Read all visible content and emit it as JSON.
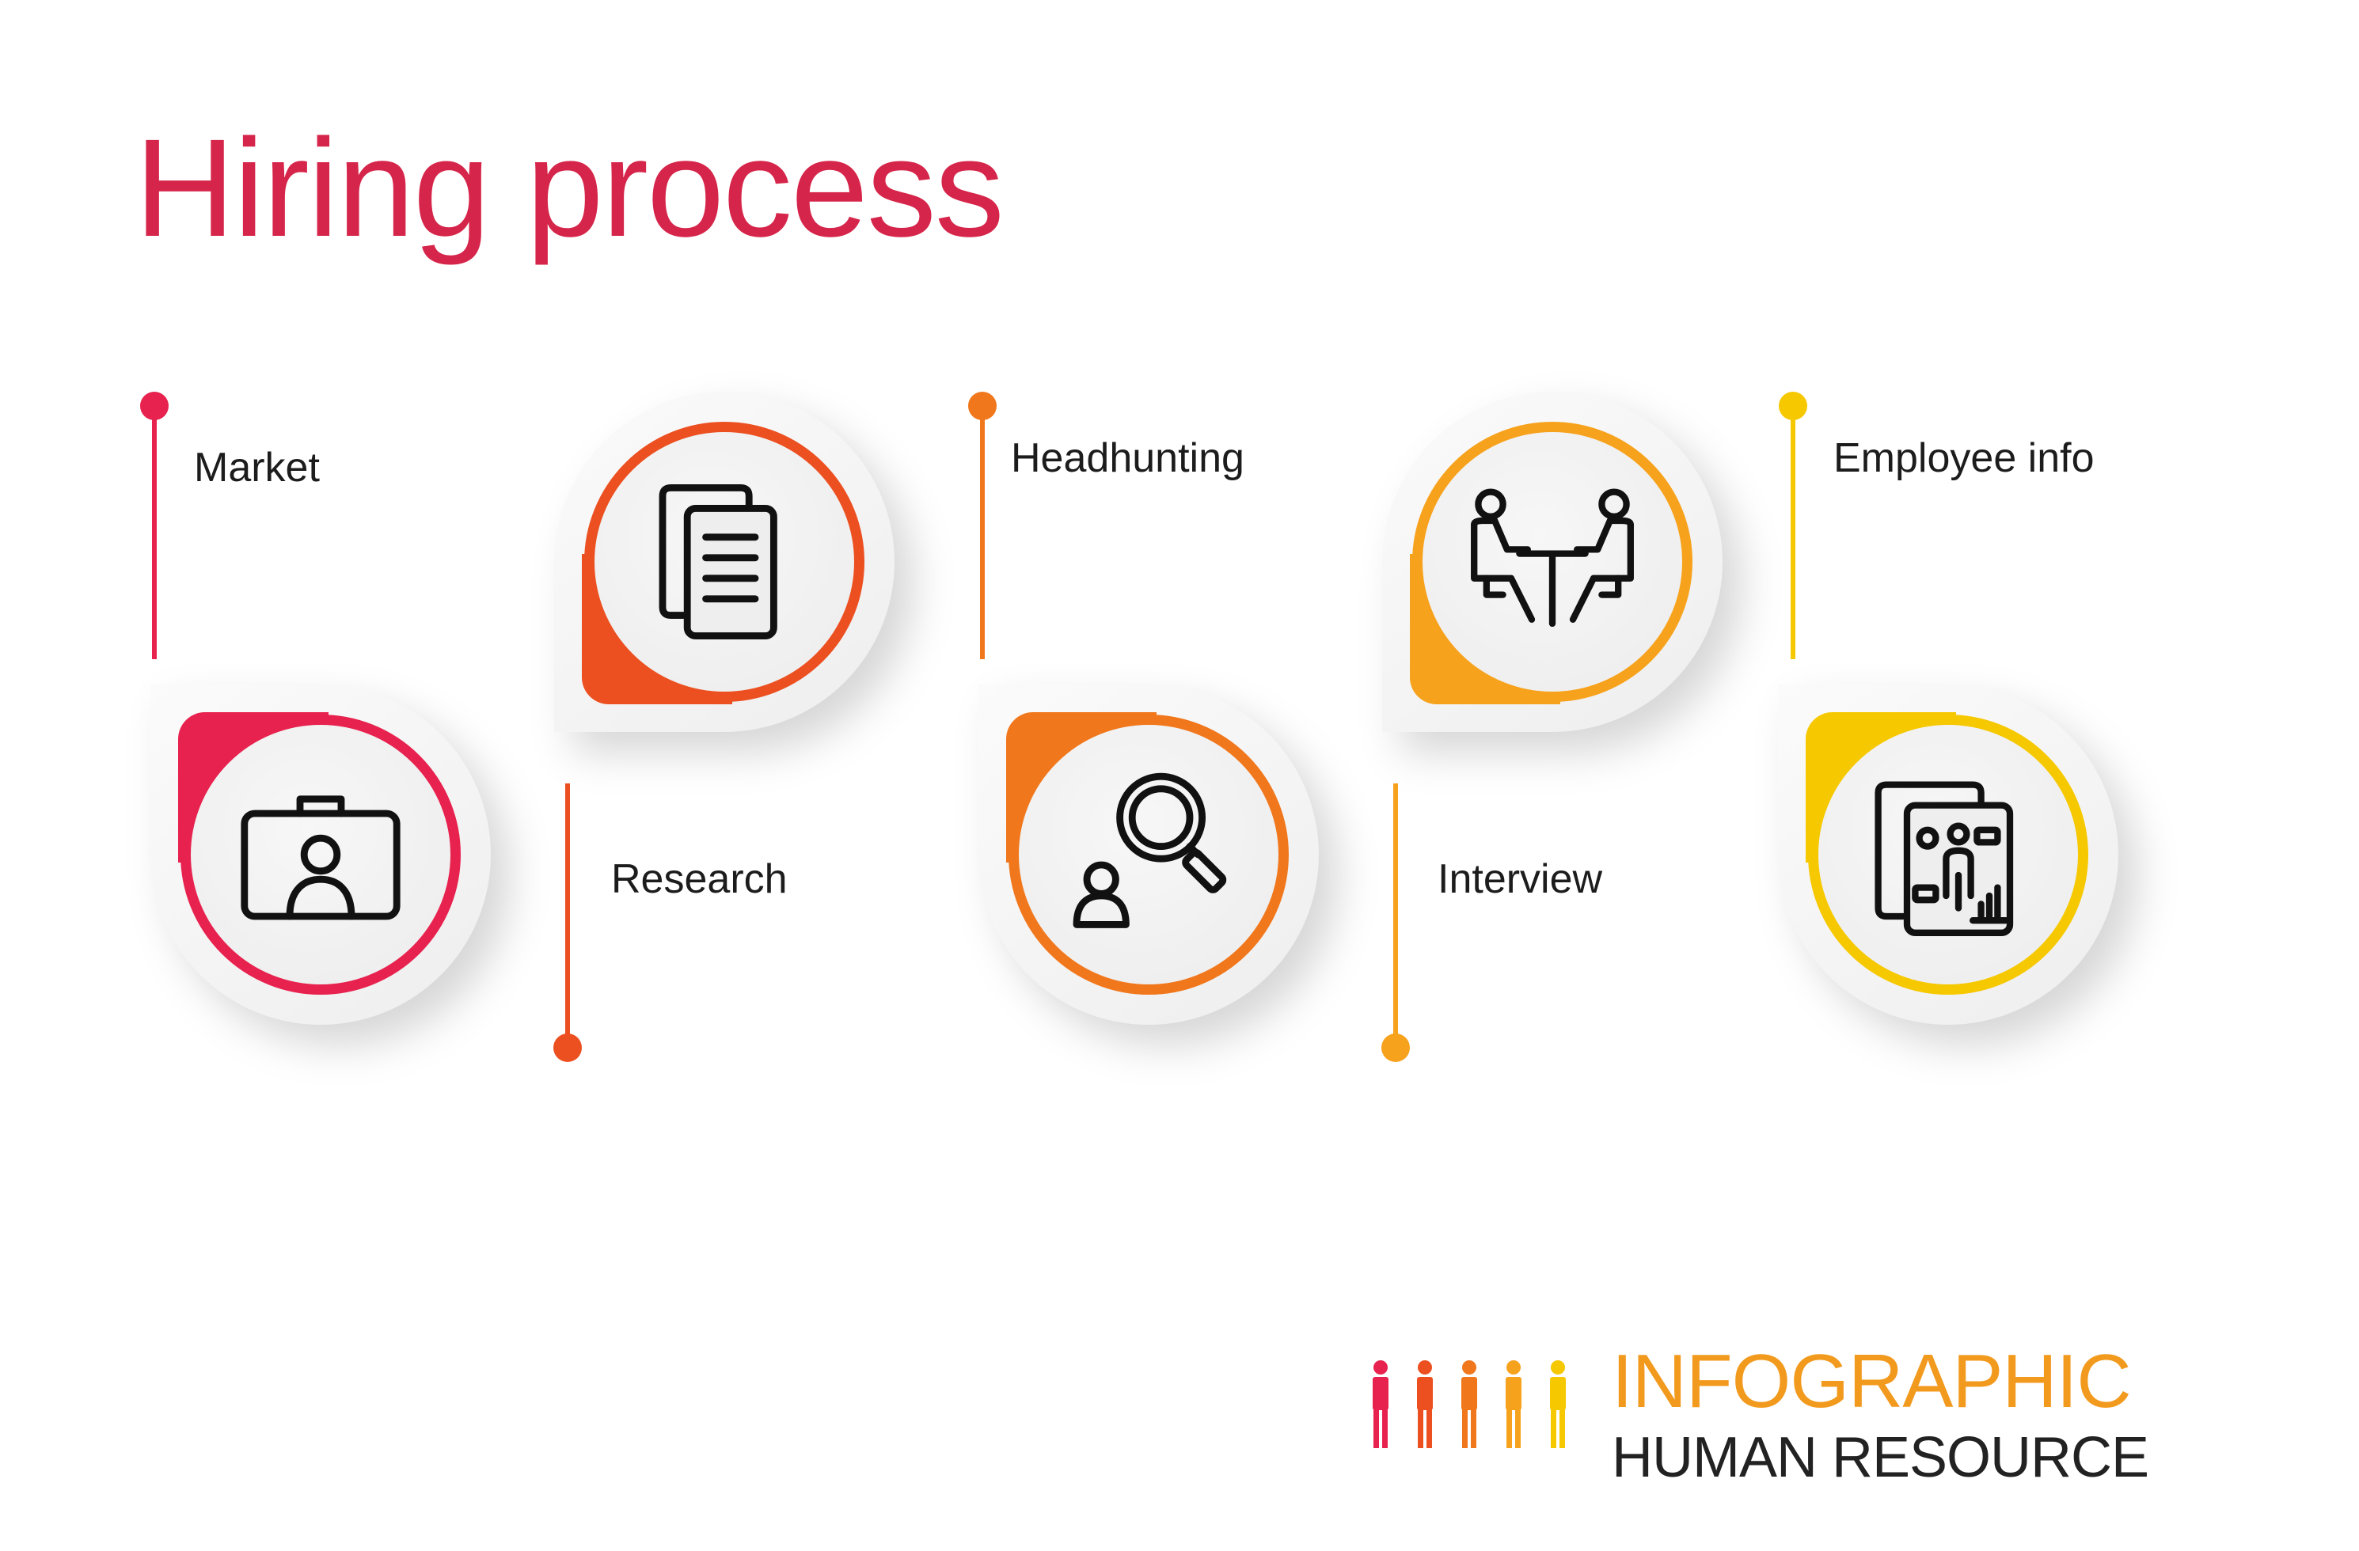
{
  "title": "Hiring process",
  "colors": {
    "title": "#d6254a",
    "step1": "#e8224f",
    "step2": "#ec5021",
    "step3": "#f1771c",
    "step4": "#f7a21c",
    "step5": "#f6c800",
    "logo_accent": "#f29a1e"
  },
  "steps": [
    {
      "label": "Market",
      "icon": "id-card-icon"
    },
    {
      "label": "Research",
      "icon": "documents-icon"
    },
    {
      "label": "Headhunting",
      "icon": "search-person-icon"
    },
    {
      "label": "Interview",
      "icon": "meeting-table-icon"
    },
    {
      "label": "Employee info",
      "icon": "employee-profile-icon"
    }
  ],
  "logo": {
    "line1": "INFOGRAPHIC",
    "line2": "HUMAN RESOURCE",
    "icon": "people-icon"
  }
}
